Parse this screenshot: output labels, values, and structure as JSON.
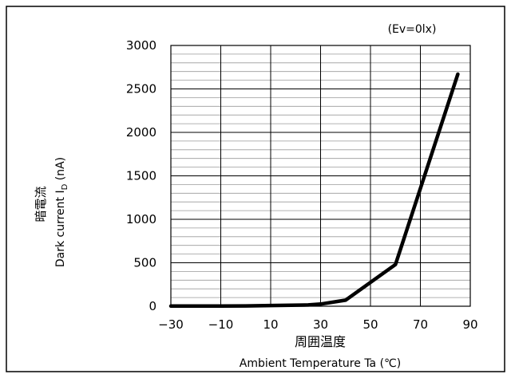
{
  "chart_data": {
    "type": "line",
    "title": "",
    "condition": "(Ev=0lx)",
    "xlabel_jp": "周囲温度",
    "xlabel_en": "Ambient Temperature Ta (℃)",
    "ylabel_jp": "暗電流",
    "ylabel_en_prefix": "Dark current I",
    "ylabel_en_sub": "D",
    "ylabel_en_suffix": " (nA)",
    "xlim": [
      -30,
      90
    ],
    "ylim": [
      0,
      3000
    ],
    "x_ticks": [
      "−30",
      "−10",
      "10",
      "30",
      "50",
      "70",
      "90"
    ],
    "x_tick_values": [
      -30,
      -10,
      10,
      30,
      50,
      70,
      90
    ],
    "y_ticks": [
      "0",
      "500",
      "1000",
      "1500",
      "2000",
      "2500",
      "3000"
    ],
    "y_tick_values": [
      0,
      500,
      1000,
      1500,
      2000,
      2500,
      3000
    ],
    "grid": true,
    "series": [
      {
        "x": [
          -30,
          -10,
          0,
          10,
          25,
          30,
          40,
          60,
          85
        ],
        "y": [
          2,
          3,
          4,
          8,
          15,
          25,
          70,
          480,
          2670
        ],
        "color": "#000000"
      }
    ]
  }
}
